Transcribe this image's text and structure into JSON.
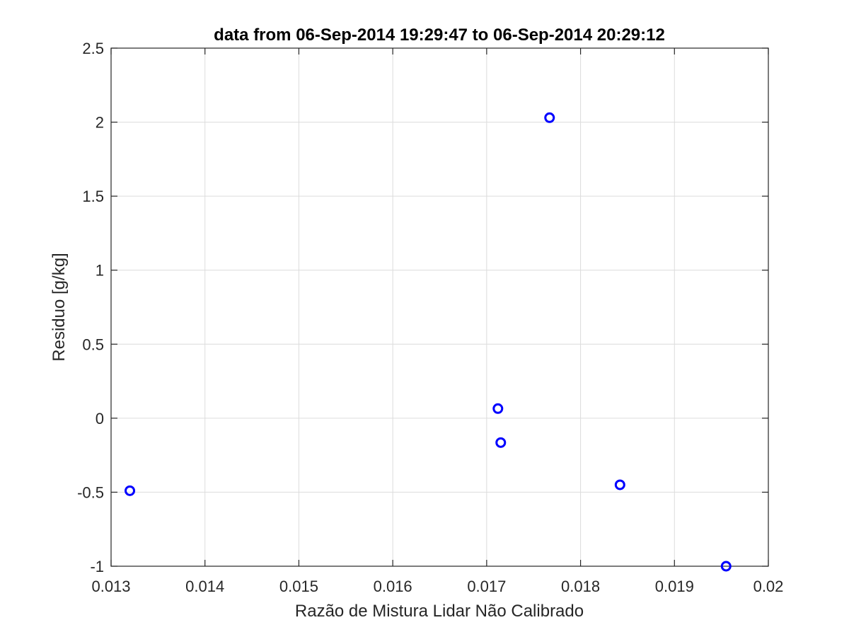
{
  "chart_data": {
    "type": "scatter",
    "title": "data from 06-Sep-2014 19:29:47 to 06-Sep-2014 20:29:12",
    "xlabel": "Razão de Mistura Lidar Não Calibrado",
    "ylabel": "Residuo [g/kg]",
    "xlim": [
      0.013,
      0.02
    ],
    "ylim": [
      -1,
      2.5
    ],
    "xticks": [
      0.013,
      0.014,
      0.015,
      0.016,
      0.017,
      0.018,
      0.019,
      0.02
    ],
    "xtick_labels": [
      "0.013",
      "0.014",
      "0.015",
      "0.016",
      "0.017",
      "0.018",
      "0.019",
      "0.02"
    ],
    "yticks": [
      -1,
      -0.5,
      0,
      0.5,
      1,
      1.5,
      2,
      2.5
    ],
    "ytick_labels": [
      "-1",
      "-0.5",
      "0",
      "0.5",
      "1",
      "1.5",
      "2",
      "2.5"
    ],
    "grid": true,
    "marker": "circle-open",
    "series": [
      {
        "x": [
          0.0132,
          0.01712,
          0.01715,
          0.01767,
          0.01842,
          0.01955
        ],
        "y": [
          -0.49,
          0.065,
          -0.165,
          2.03,
          -0.45,
          -1.0
        ]
      }
    ]
  },
  "colors": {
    "marker": "#0000ff",
    "grid": "#dcdcdc",
    "axis": "#262626"
  }
}
